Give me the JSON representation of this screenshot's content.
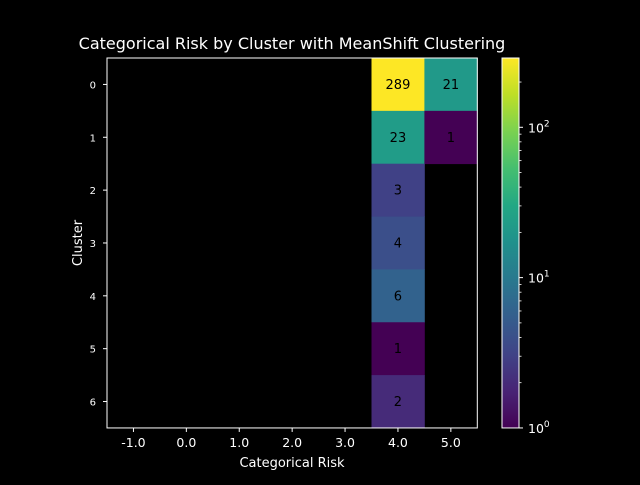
{
  "chart_data": {
    "type": "heatmap",
    "title": "Categorical Risk by Cluster with MeanShift Clustering",
    "xlabel": "Categorical Risk",
    "ylabel": "Cluster",
    "x_categories": [
      "-1.0",
      "0.0",
      "1.0",
      "2.0",
      "3.0",
      "4.0",
      "5.0"
    ],
    "y_categories": [
      "0",
      "1",
      "2",
      "3",
      "4",
      "5",
      "6"
    ],
    "cells": [
      {
        "row": 0,
        "col": 5,
        "value": 289,
        "label": "289"
      },
      {
        "row": 0,
        "col": 6,
        "value": 21,
        "label": "21"
      },
      {
        "row": 1,
        "col": 5,
        "value": 23,
        "label": "23"
      },
      {
        "row": 1,
        "col": 6,
        "value": 1,
        "label": "1"
      },
      {
        "row": 2,
        "col": 5,
        "value": 3,
        "label": "3"
      },
      {
        "row": 3,
        "col": 5,
        "value": 4,
        "label": "4"
      },
      {
        "row": 4,
        "col": 5,
        "value": 6,
        "label": "6"
      },
      {
        "row": 5,
        "col": 5,
        "value": 1,
        "label": "1"
      },
      {
        "row": 6,
        "col": 5,
        "value": 2,
        "label": "2"
      }
    ],
    "colorbar": {
      "scale": "log",
      "colormap": "viridis",
      "range": [
        1,
        289
      ],
      "tick_values": [
        1,
        10,
        100
      ],
      "tick_labels": [
        {
          "base": "10",
          "exp": "0"
        },
        {
          "base": "10",
          "exp": "1"
        },
        {
          "base": "10",
          "exp": "2"
        }
      ]
    },
    "colors": {
      "background": "#000000",
      "foreground": "#ffffff"
    }
  }
}
